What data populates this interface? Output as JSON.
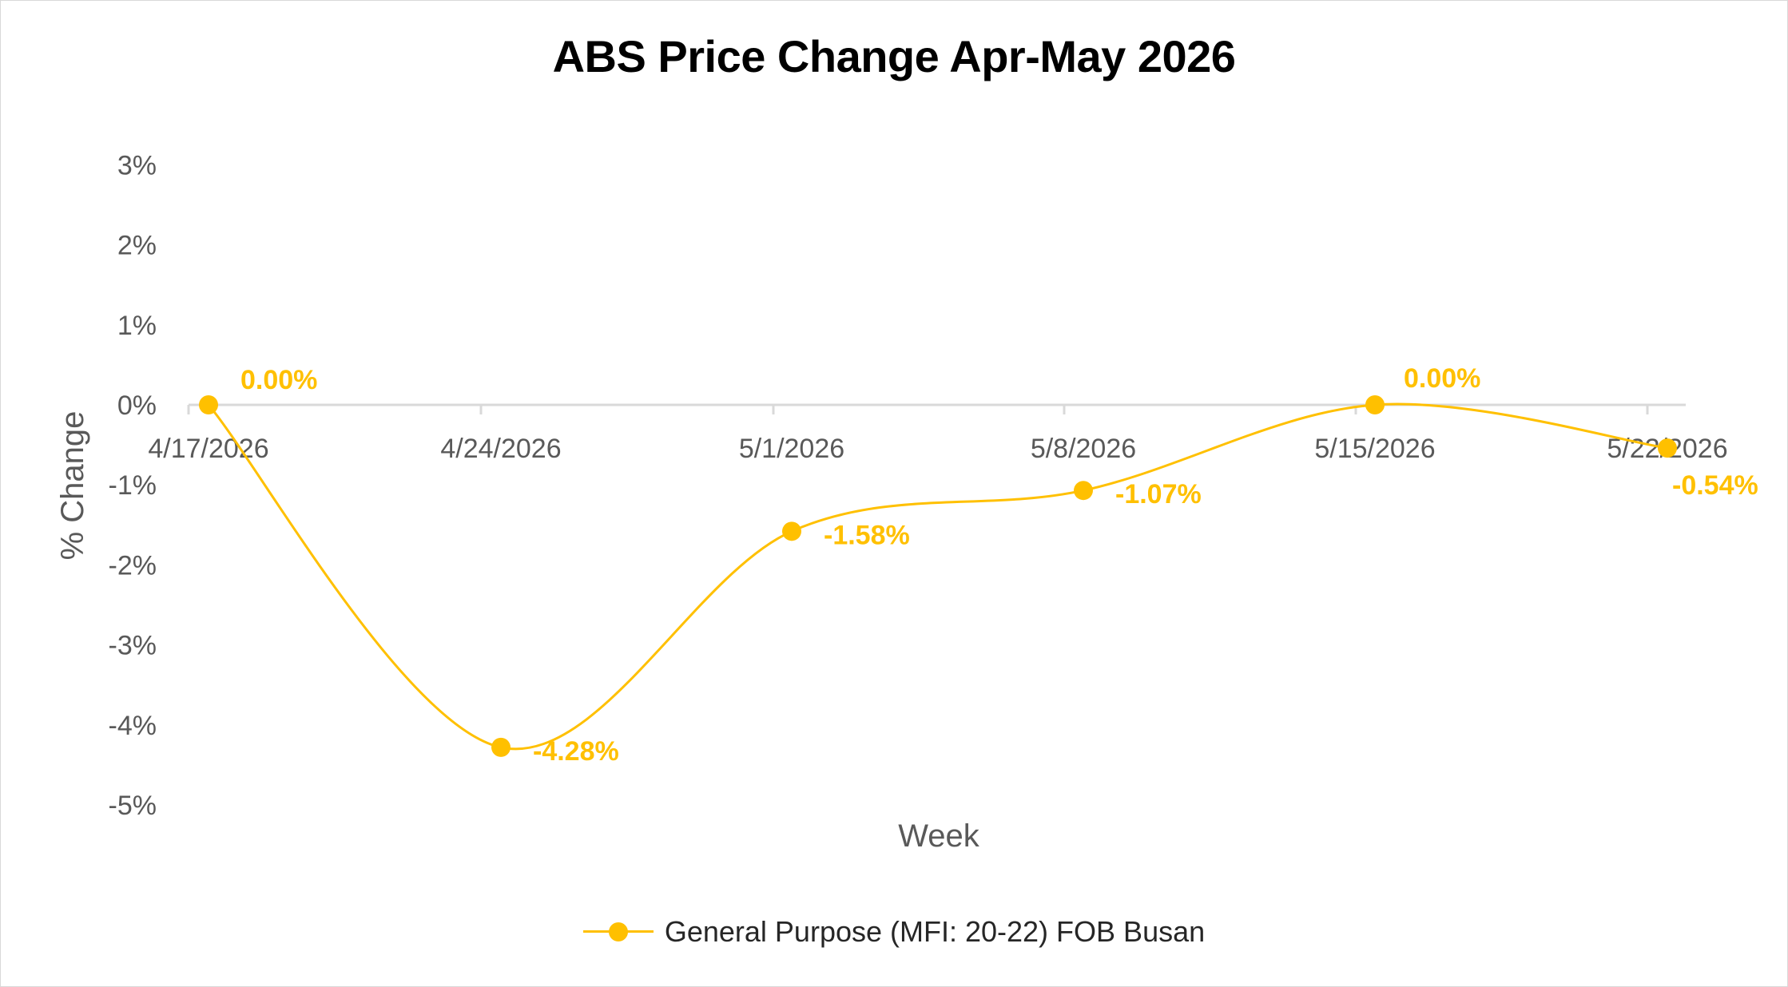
{
  "chart_data": {
    "type": "line",
    "title": "ABS Price Change Apr-May 2026",
    "xlabel": "Week",
    "ylabel": "% Change",
    "categories": [
      "4/17/2026",
      "4/24/2026",
      "5/1/2026",
      "5/8/2026",
      "5/15/2026",
      "5/22/2026"
    ],
    "series": [
      {
        "name": "General Purpose (MFI: 20-22) FOB Busan",
        "values": [
          0.0,
          -4.28,
          -1.58,
          -1.07,
          0.0,
          -0.54
        ],
        "labels": [
          "0.00%",
          "-4.28%",
          "-1.58%",
          "-1.07%",
          "0.00%",
          "-0.54%"
        ],
        "color": "#FFC000"
      }
    ],
    "ylim": [
      -5,
      3
    ],
    "yticks": [
      3,
      2,
      1,
      0,
      -1,
      -2,
      -3,
      -4,
      -5
    ],
    "ytick_labels": [
      "3%",
      "2%",
      "1%",
      "0%",
      "-1%",
      "-2%",
      "-3%",
      "-4%",
      "-5%"
    ],
    "smooth": true,
    "grid": false,
    "legend": "bottom"
  },
  "colors": {
    "series": "#FFC000",
    "axis": "#d9d9d9",
    "text": "#595959"
  }
}
